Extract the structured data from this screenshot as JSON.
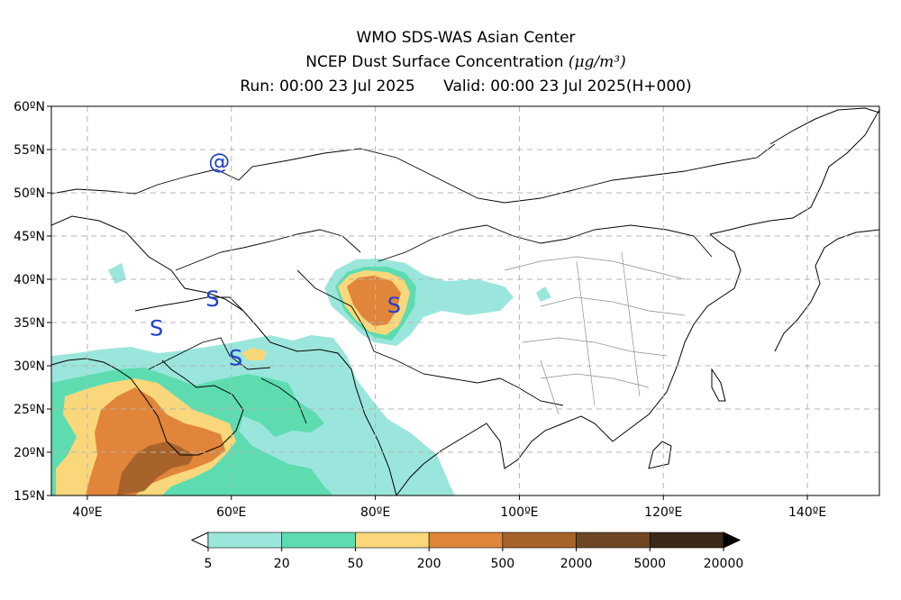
{
  "title": {
    "line1": "WMO SDS-WAS Asian Center",
    "line2_text": "NCEP Dust Surface Concentration",
    "line2_unit": "(μg/m³)",
    "run": "Run: 00:00 23 Jul 2025",
    "valid": "Valid: 00:00 23 Jul 2025(H+000)"
  },
  "map": {
    "lon_range": [
      35,
      150
    ],
    "lat_range": [
      15,
      60
    ],
    "lat_ticks": [
      {
        "value": 60,
        "label": "60ºN"
      },
      {
        "value": 55,
        "label": "55ºN"
      },
      {
        "value": 50,
        "label": "50ºN"
      },
      {
        "value": 45,
        "label": "45ºN"
      },
      {
        "value": 40,
        "label": "40ºN"
      },
      {
        "value": 35,
        "label": "35ºN"
      },
      {
        "value": 30,
        "label": "30ºN"
      },
      {
        "value": 25,
        "label": "25ºN"
      },
      {
        "value": 20,
        "label": "20ºN"
      },
      {
        "value": 15,
        "label": "15ºN"
      }
    ],
    "lon_ticks": [
      {
        "value": 40,
        "label": "40ºE"
      },
      {
        "value": 60,
        "label": "60ºE"
      },
      {
        "value": 80,
        "label": "80ºE"
      },
      {
        "value": 100,
        "label": "100ºE"
      },
      {
        "value": 120,
        "label": "120ºE"
      },
      {
        "value": 140,
        "label": "140ºE"
      }
    ],
    "grid": true,
    "storm_symbols": [
      {
        "label": "S",
        "lon": 49.6,
        "lat": 34.3
      },
      {
        "label": "S",
        "lon": 57.4,
        "lat": 37.7
      },
      {
        "label": "S",
        "lon": 60.6,
        "lat": 30.9
      },
      {
        "label": "S",
        "lon": 82.6,
        "lat": 37.0
      },
      {
        "label": "@",
        "lon": 58.3,
        "lat": 53.6
      }
    ]
  },
  "colorbar": {
    "colors": [
      "#9be6dc",
      "#5ddcb0",
      "#f9d77a",
      "#e0853a",
      "#a7632a",
      "#6e4624",
      "#3a2818"
    ],
    "labels": [
      "5",
      "20",
      "50",
      "200",
      "500",
      "2000",
      "5000",
      "20000"
    ]
  },
  "dust_colors": {
    "level1": "#9be6dc",
    "level2": "#5ddcb0",
    "level3": "#f9d77a",
    "level4": "#e0853a",
    "level5": "#a7632a"
  }
}
